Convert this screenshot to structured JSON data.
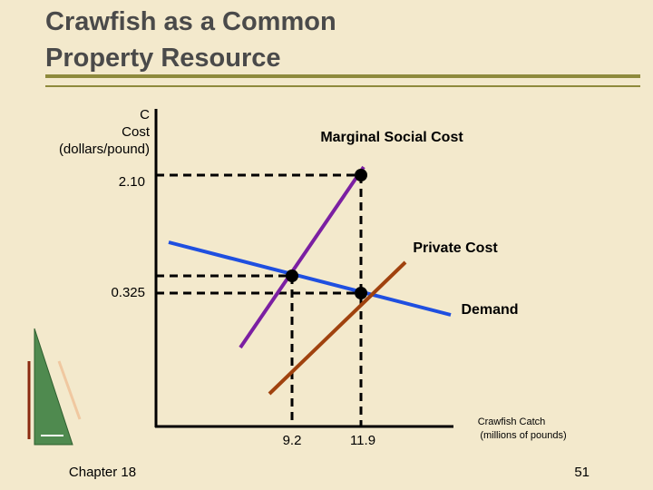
{
  "header": {
    "title_lines": [
      "Crawfish as a Common",
      "Property Resource"
    ]
  },
  "diagram": {
    "y_axis_label_lines": [
      "C",
      "Cost",
      "(dollars/pound)"
    ],
    "y_ticks": [
      "2.10",
      "0.325"
    ],
    "x_ticks": [
      "9.2",
      "11.9"
    ],
    "x_axis_label_lines": [
      "Crawfish Catch",
      "(millions of pounds)"
    ],
    "curves": [
      "Marginal Social Cost",
      "Private Cost",
      "Demand"
    ]
  },
  "footer": {
    "chapter": "Chapter 18",
    "page": "51"
  }
}
